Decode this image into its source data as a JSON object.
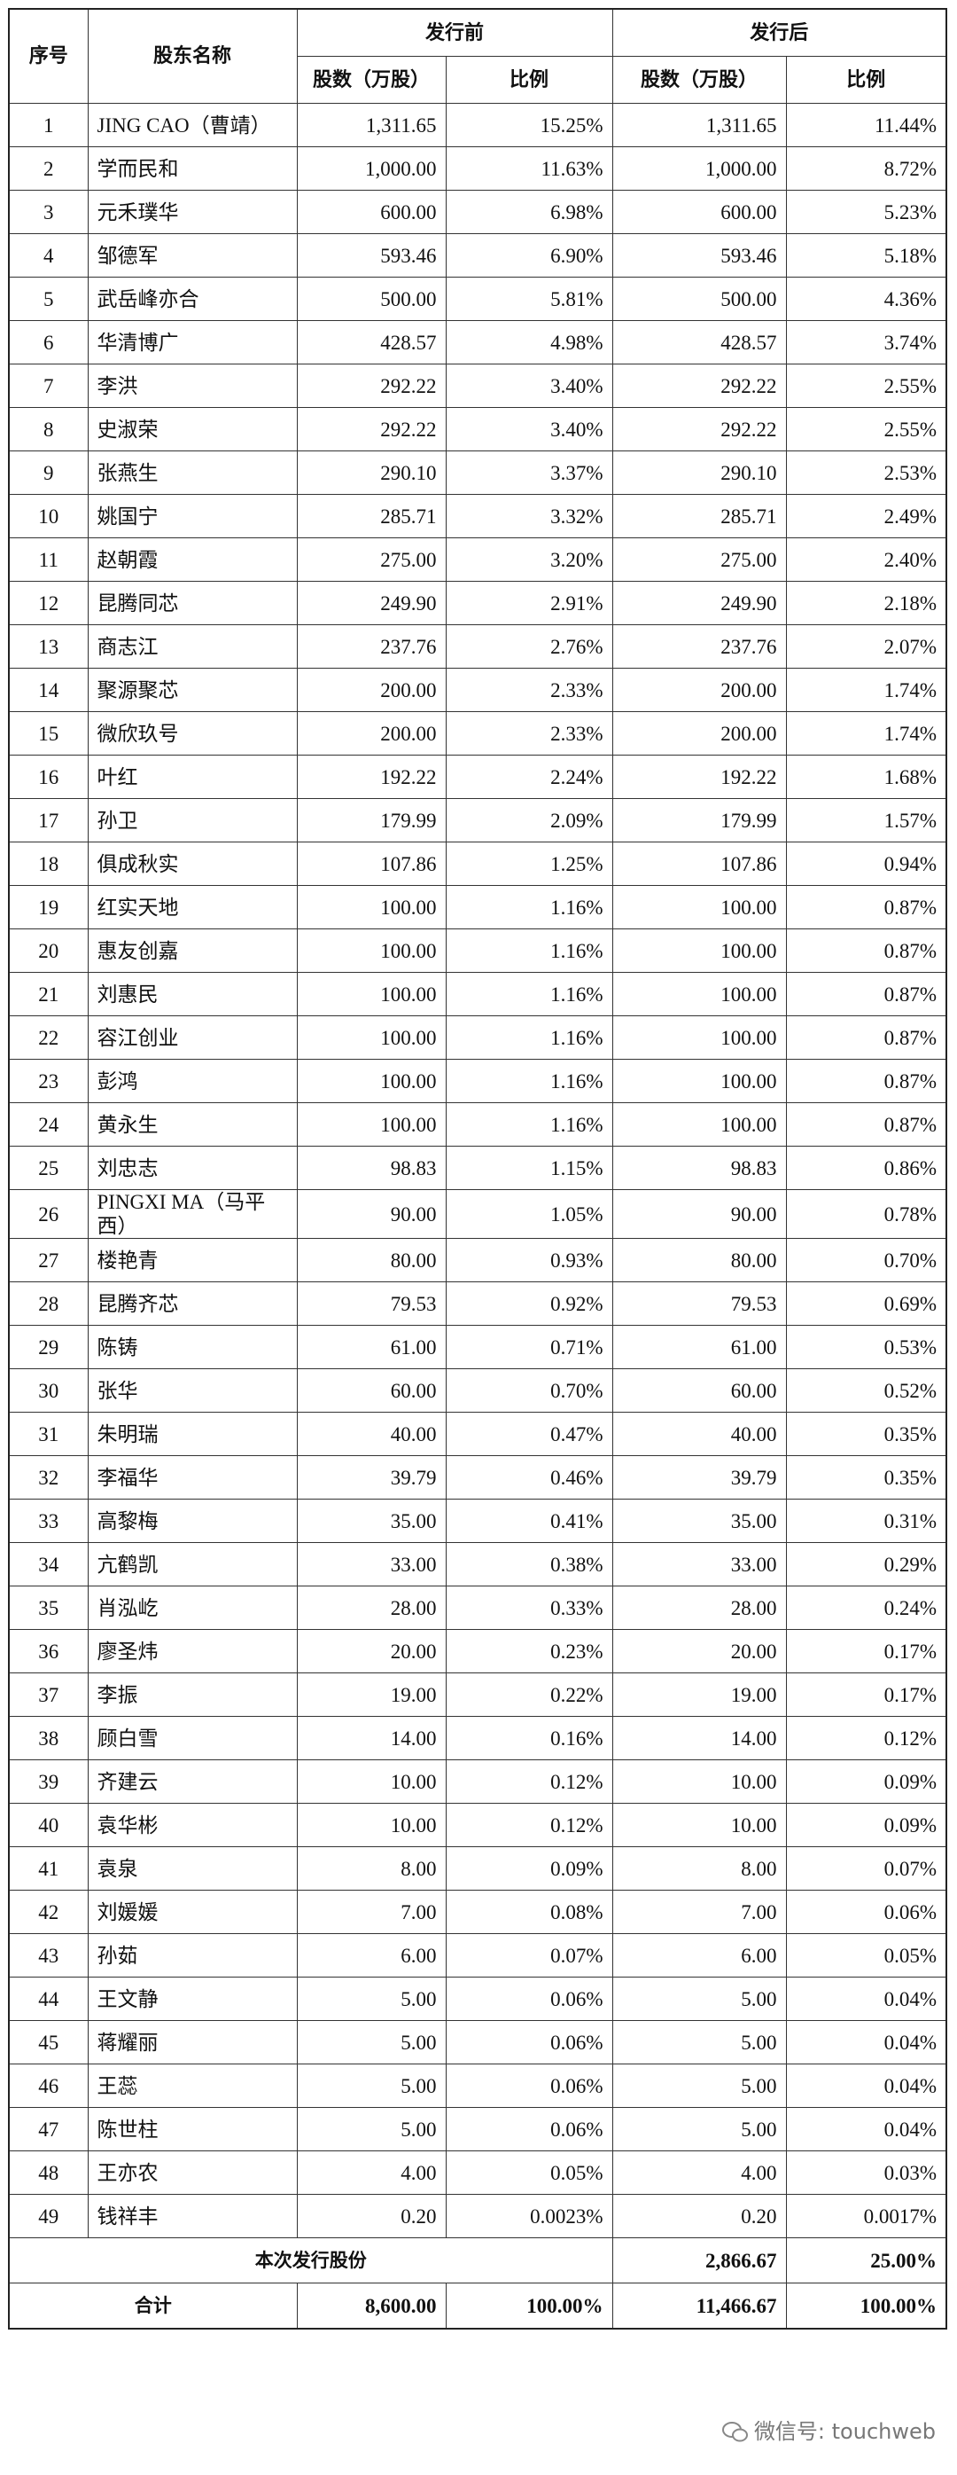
{
  "table": {
    "header": {
      "seq": "序号",
      "name": "股东名称",
      "before": "发行前",
      "after": "发行后",
      "columns": [
        "股数（万股）",
        "比例",
        "股数（万股）",
        "比例"
      ]
    },
    "rows": [
      [
        "1",
        "JING CAO（曹靖）",
        "1,311.65",
        "15.25%",
        "1,311.65",
        "11.44%"
      ],
      [
        "2",
        "学而民和",
        "1,000.00",
        "11.63%",
        "1,000.00",
        "8.72%"
      ],
      [
        "3",
        "元禾璞华",
        "600.00",
        "6.98%",
        "600.00",
        "5.23%"
      ],
      [
        "4",
        "邹德军",
        "593.46",
        "6.90%",
        "593.46",
        "5.18%"
      ],
      [
        "5",
        "武岳峰亦合",
        "500.00",
        "5.81%",
        "500.00",
        "4.36%"
      ],
      [
        "6",
        "华清博广",
        "428.57",
        "4.98%",
        "428.57",
        "3.74%"
      ],
      [
        "7",
        "李洪",
        "292.22",
        "3.40%",
        "292.22",
        "2.55%"
      ],
      [
        "8",
        "史淑荣",
        "292.22",
        "3.40%",
        "292.22",
        "2.55%"
      ],
      [
        "9",
        "张燕生",
        "290.10",
        "3.37%",
        "290.10",
        "2.53%"
      ],
      [
        "10",
        "姚国宁",
        "285.71",
        "3.32%",
        "285.71",
        "2.49%"
      ],
      [
        "11",
        "赵朝霞",
        "275.00",
        "3.20%",
        "275.00",
        "2.40%"
      ],
      [
        "12",
        "昆腾同芯",
        "249.90",
        "2.91%",
        "249.90",
        "2.18%"
      ],
      [
        "13",
        "商志江",
        "237.76",
        "2.76%",
        "237.76",
        "2.07%"
      ],
      [
        "14",
        "聚源聚芯",
        "200.00",
        "2.33%",
        "200.00",
        "1.74%"
      ],
      [
        "15",
        "微欣玖号",
        "200.00",
        "2.33%",
        "200.00",
        "1.74%"
      ],
      [
        "16",
        "叶红",
        "192.22",
        "2.24%",
        "192.22",
        "1.68%"
      ],
      [
        "17",
        "孙卫",
        "179.99",
        "2.09%",
        "179.99",
        "1.57%"
      ],
      [
        "18",
        "俱成秋实",
        "107.86",
        "1.25%",
        "107.86",
        "0.94%"
      ],
      [
        "19",
        "红实天地",
        "100.00",
        "1.16%",
        "100.00",
        "0.87%"
      ],
      [
        "20",
        "惠友创嘉",
        "100.00",
        "1.16%",
        "100.00",
        "0.87%"
      ],
      [
        "21",
        "刘惠民",
        "100.00",
        "1.16%",
        "100.00",
        "0.87%"
      ],
      [
        "22",
        "容江创业",
        "100.00",
        "1.16%",
        "100.00",
        "0.87%"
      ],
      [
        "23",
        "彭鸿",
        "100.00",
        "1.16%",
        "100.00",
        "0.87%"
      ],
      [
        "24",
        "黄永生",
        "100.00",
        "1.16%",
        "100.00",
        "0.87%"
      ],
      [
        "25",
        "刘忠志",
        "98.83",
        "1.15%",
        "98.83",
        "0.86%"
      ],
      [
        "26",
        "PINGXI MA（马平西）",
        "90.00",
        "1.05%",
        "90.00",
        "0.78%"
      ],
      [
        "27",
        "楼艳青",
        "80.00",
        "0.93%",
        "80.00",
        "0.70%"
      ],
      [
        "28",
        "昆腾齐芯",
        "79.53",
        "0.92%",
        "79.53",
        "0.69%"
      ],
      [
        "29",
        "陈铸",
        "61.00",
        "0.71%",
        "61.00",
        "0.53%"
      ],
      [
        "30",
        "张华",
        "60.00",
        "0.70%",
        "60.00",
        "0.52%"
      ],
      [
        "31",
        "朱明瑞",
        "40.00",
        "0.47%",
        "40.00",
        "0.35%"
      ],
      [
        "32",
        "李福华",
        "39.79",
        "0.46%",
        "39.79",
        "0.35%"
      ],
      [
        "33",
        "高黎梅",
        "35.00",
        "0.41%",
        "35.00",
        "0.31%"
      ],
      [
        "34",
        "亢鹤凯",
        "33.00",
        "0.38%",
        "33.00",
        "0.29%"
      ],
      [
        "35",
        "肖泓屹",
        "28.00",
        "0.33%",
        "28.00",
        "0.24%"
      ],
      [
        "36",
        "廖圣炜",
        "20.00",
        "0.23%",
        "20.00",
        "0.17%"
      ],
      [
        "37",
        "李振",
        "19.00",
        "0.22%",
        "19.00",
        "0.17%"
      ],
      [
        "38",
        "顾白雪",
        "14.00",
        "0.16%",
        "14.00",
        "0.12%"
      ],
      [
        "39",
        "齐建云",
        "10.00",
        "0.12%",
        "10.00",
        "0.09%"
      ],
      [
        "40",
        "袁华彬",
        "10.00",
        "0.12%",
        "10.00",
        "0.09%"
      ],
      [
        "41",
        "袁泉",
        "8.00",
        "0.09%",
        "8.00",
        "0.07%"
      ],
      [
        "42",
        "刘媛媛",
        "7.00",
        "0.08%",
        "7.00",
        "0.06%"
      ],
      [
        "43",
        "孙茹",
        "6.00",
        "0.07%",
        "6.00",
        "0.05%"
      ],
      [
        "44",
        "王文静",
        "5.00",
        "0.06%",
        "5.00",
        "0.04%"
      ],
      [
        "45",
        "蒋耀丽",
        "5.00",
        "0.06%",
        "5.00",
        "0.04%"
      ],
      [
        "46",
        "王蕊",
        "5.00",
        "0.06%",
        "5.00",
        "0.04%"
      ],
      [
        "47",
        "陈世柱",
        "5.00",
        "0.06%",
        "5.00",
        "0.04%"
      ],
      [
        "48",
        "王亦农",
        "4.00",
        "0.05%",
        "4.00",
        "0.03%"
      ],
      [
        "49",
        "钱祥丰",
        "0.20",
        "0.0023%",
        "0.20",
        "0.0017%"
      ]
    ],
    "issue": {
      "label": "本次发行股份",
      "shares": "2,866.67",
      "ratio": "25.00%"
    },
    "total": {
      "label": "合计",
      "shares_before": "8,600.00",
      "ratio_before": "100.00%",
      "shares_after": "11,466.67",
      "ratio_after": "100.00%"
    }
  },
  "watermark": "微信号: touchweb"
}
